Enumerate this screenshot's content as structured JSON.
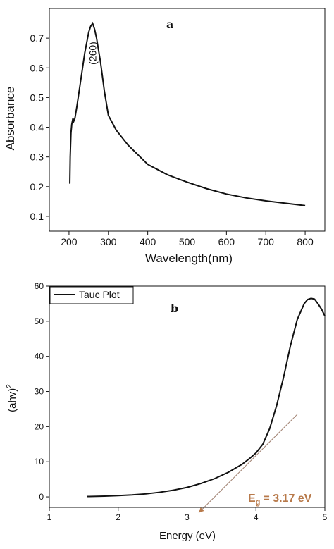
{
  "chart_data": [
    {
      "type": "line",
      "panel_label": "a",
      "xlabel": "Wavelength(nm)",
      "ylabel": "Absorbance",
      "xlim": [
        150,
        850
      ],
      "ylim": [
        0.05,
        0.8
      ],
      "xticks": [
        200,
        300,
        400,
        500,
        600,
        700,
        800
      ],
      "yticks": [
        0.1,
        0.2,
        0.3,
        0.4,
        0.5,
        0.6,
        0.7
      ],
      "series": [
        {
          "x": [
            202,
            203,
            205,
            207,
            210,
            212,
            215,
            220,
            230,
            240,
            250,
            255,
            260,
            265,
            270,
            280,
            290,
            300,
            320,
            350,
            400,
            450,
            500,
            550,
            600,
            650,
            700,
            750,
            800
          ],
          "y": [
            0.21,
            0.3,
            0.38,
            0.41,
            0.43,
            0.42,
            0.43,
            0.47,
            0.56,
            0.65,
            0.72,
            0.74,
            0.75,
            0.73,
            0.7,
            0.62,
            0.52,
            0.44,
            0.39,
            0.34,
            0.275,
            0.24,
            0.215,
            0.193,
            0.175,
            0.162,
            0.152,
            0.144,
            0.136
          ]
        }
      ],
      "annotations": [
        {
          "text": "(260)",
          "x": 262,
          "y": 0.62
        }
      ],
      "color": "#111111"
    },
    {
      "type": "line",
      "panel_label": "b",
      "xlabel": "Energy (eV)",
      "ylabel": "(ahv)",
      "ylabel_superscript": "2",
      "xlim": [
        1,
        5
      ],
      "ylim": [
        -3,
        60
      ],
      "xticks": [
        1,
        2,
        3,
        4,
        5
      ],
      "yticks": [
        0,
        10,
        20,
        30,
        40,
        50,
        60
      ],
      "legend": {
        "position": "top-left",
        "entries": [
          "Tauc Plot"
        ]
      },
      "series": [
        {
          "name": "Tauc Plot",
          "x": [
            1.55,
            1.8,
            2.0,
            2.2,
            2.4,
            2.6,
            2.8,
            3.0,
            3.2,
            3.4,
            3.6,
            3.8,
            3.9,
            4.0,
            4.1,
            4.2,
            4.3,
            4.4,
            4.5,
            4.6,
            4.7,
            4.75,
            4.8,
            4.85,
            4.9,
            4.95,
            5.0
          ],
          "y": [
            0.1,
            0.2,
            0.35,
            0.55,
            0.85,
            1.3,
            1.9,
            2.7,
            3.8,
            5.2,
            7.0,
            9.3,
            10.8,
            12.5,
            15.0,
            19.5,
            26.0,
            34.0,
            43.0,
            50.5,
            55.0,
            56.2,
            56.5,
            56.3,
            55.0,
            53.5,
            51.5
          ]
        }
      ],
      "fit_line": {
        "x": [
          3.17,
          4.6
        ],
        "y": [
          -4.5,
          23.5
        ],
        "color": "#a08070"
      },
      "annotation": {
        "text_main": "E",
        "text_sub": "g",
        "text_value": "= 3.17 eV",
        "x_value": 3.17,
        "color": "#b87a4b"
      },
      "color": "#111111"
    }
  ]
}
